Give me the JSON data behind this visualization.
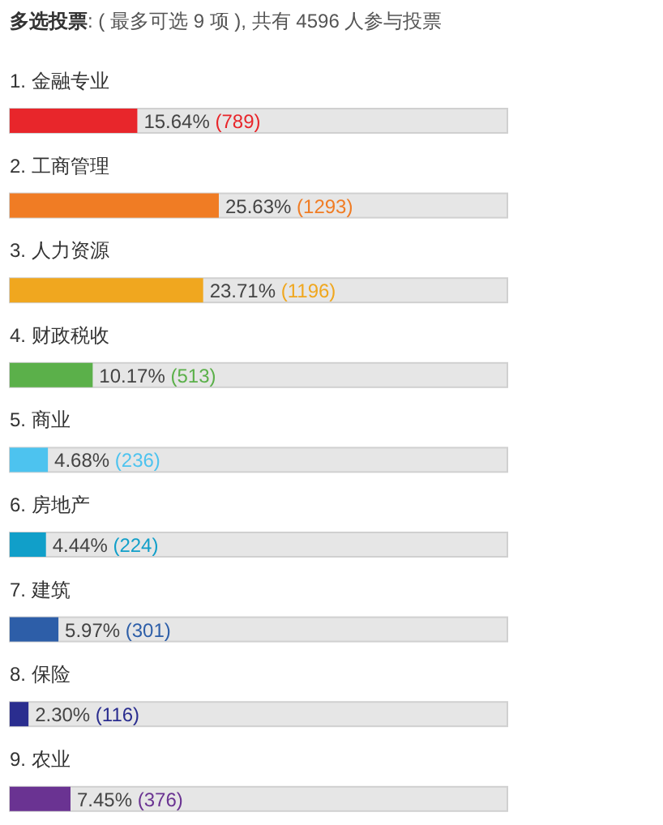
{
  "chart_data": {
    "type": "bar",
    "orientation": "horizontal",
    "title": "多选投票: ( 最多可选 9 项 ), 共有 4596 人参与投票",
    "categories": [
      "1.  金融专业",
      "2.  工商管理",
      "3.  人力资源",
      "4.  财政税收",
      "5.  商业",
      "6.  房地产",
      "7.  建筑",
      "8.  保险",
      "9.  农业"
    ],
    "values": [
      15.64,
      25.63,
      23.71,
      10.17,
      4.68,
      4.44,
      5.97,
      2.3,
      7.45
    ],
    "value_labels": [
      "15.64% (789)",
      "25.63% (1293)",
      "23.71% (1196)",
      "10.17% (513)",
      "4.68% (236)",
      "4.44% (224)",
      "5.97% (301)",
      "2.30% (116)",
      "7.45% (376)"
    ],
    "colors": [
      "#e8262b",
      "#f07c24",
      "#f0a71f",
      "#5bb04a",
      "#4dc3ef",
      "#119fc9",
      "#2d5ea8",
      "#2a2d8f",
      "#6a3392"
    ],
    "xlim": [
      0,
      61
    ]
  }
}
